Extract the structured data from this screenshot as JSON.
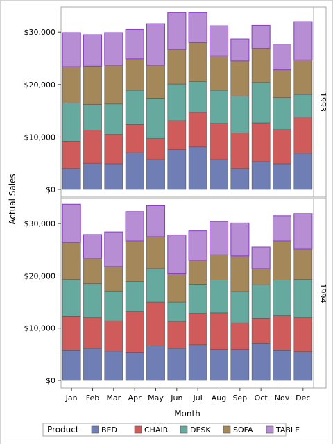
{
  "chart_data": {
    "type": "bar",
    "stacked": true,
    "categories": [
      "Jan",
      "Feb",
      "Mar",
      "Apr",
      "May",
      "Jun",
      "Jul",
      "Aug",
      "Sep",
      "Oct",
      "Nov",
      "Dec"
    ],
    "xlabel": "Month",
    "ylabel": "Actual Sales",
    "ylim": [
      0,
      34000
    ],
    "yticks": [
      0,
      10000,
      20000,
      30000
    ],
    "ytick_labels": [
      "$0",
      "$10,000",
      "$20,000",
      "$30,000"
    ],
    "legend": {
      "title": "Product",
      "placement": "bottom"
    },
    "series_meta": [
      {
        "name": "BED",
        "color": "#6f7eb5"
      },
      {
        "name": "CHAIR",
        "color": "#d05b5b"
      },
      {
        "name": "DESK",
        "color": "#66a99e"
      },
      {
        "name": "SOFA",
        "color": "#a5885a"
      },
      {
        "name": "TABLE",
        "color": "#b78ed4"
      }
    ],
    "panels": [
      {
        "label": "1993",
        "series": [
          {
            "name": "BED",
            "values": [
              4000,
              5000,
              4900,
              7000,
              5700,
              7600,
              8100,
              5700,
              4000,
              5300,
              4900,
              6900
            ]
          },
          {
            "name": "CHAIR",
            "values": [
              5200,
              6300,
              5600,
              5400,
              4000,
              5500,
              6600,
              6900,
              6800,
              7400,
              6500,
              6900
            ]
          },
          {
            "name": "DESK",
            "values": [
              7300,
              4900,
              5800,
              6500,
              7700,
              7000,
              5900,
              6300,
              7000,
              7700,
              6100,
              4300
            ]
          },
          {
            "name": "SOFA",
            "values": [
              6900,
              7300,
              7400,
              6000,
              6300,
              6600,
              7400,
              6600,
              6700,
              6500,
              5300,
              6600
            ]
          },
          {
            "name": "TABLE",
            "values": [
              6500,
              6000,
              6200,
              5600,
              7900,
              7000,
              5700,
              5700,
              4200,
              4400,
              4900,
              7300
            ]
          }
        ]
      },
      {
        "label": "1994",
        "series": [
          {
            "name": "BED",
            "values": [
              5800,
              6100,
              5600,
              5400,
              6600,
              6100,
              6800,
              5900,
              5900,
              7100,
              5800,
              5500
            ]
          },
          {
            "name": "CHAIR",
            "values": [
              6500,
              5900,
              5800,
              7800,
              8400,
              5200,
              6000,
              7000,
              5100,
              4800,
              6600,
              6500
            ]
          },
          {
            "name": "DESK",
            "values": [
              7000,
              6500,
              5700,
              5700,
              6400,
              3700,
              5600,
              6300,
              6000,
              6400,
              6800,
              7300
            ]
          },
          {
            "name": "SOFA",
            "values": [
              7100,
              4900,
              4700,
              7800,
              6100,
              5400,
              4600,
              4800,
              6800,
              3100,
              7500,
              5800
            ]
          },
          {
            "name": "TABLE",
            "values": [
              7300,
              4500,
              6600,
              5600,
              5900,
              7400,
              5600,
              6400,
              6300,
              4100,
              4800,
              6800
            ]
          }
        ]
      }
    ]
  }
}
